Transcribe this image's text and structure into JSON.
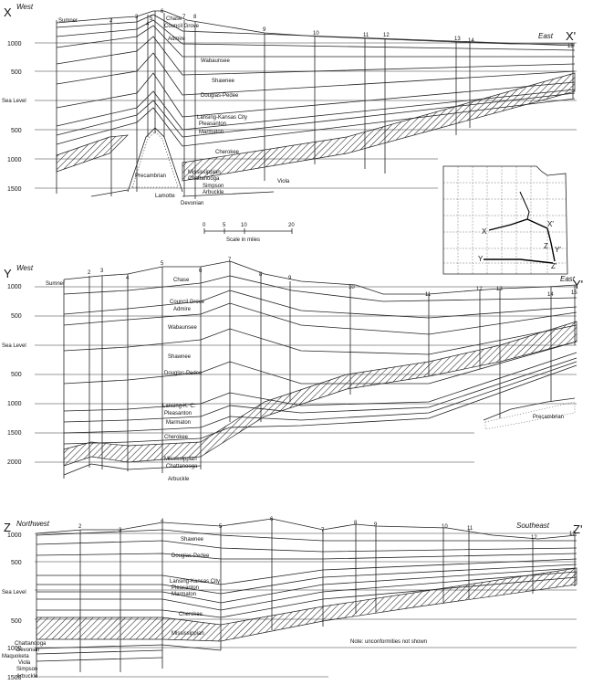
{
  "section_x": {
    "label_left": "X",
    "label_right": "X'",
    "dir_left": "West",
    "dir_right": "East",
    "elevations": [
      "1000",
      "500",
      "Sea Level",
      "500",
      "1000",
      "1500"
    ],
    "wells": [
      "2",
      "3",
      "4",
      "5",
      "6",
      "7",
      "8",
      "9",
      "10",
      "11",
      "12",
      "13",
      "14",
      "15"
    ],
    "units": [
      "Sumner",
      "Chase",
      "Council Grove",
      "Admire",
      "Wabaunsee",
      "Shawnee",
      "Douglas-Pedee",
      "Lansing-Kansas City",
      "Pleasanton",
      "Marmaton",
      "Cherokee",
      "Mississippian",
      "Chattanooga",
      "Simpson",
      "Arbuckle",
      "Devonian",
      "Viola",
      "Precambrian",
      "Lamotte"
    ],
    "scale": {
      "title": "Scale in miles",
      "ticks": [
        "0",
        "5",
        "10",
        "20"
      ]
    }
  },
  "index_map": {
    "labels": [
      "X",
      "X'",
      "Y",
      "Y'",
      "Z",
      "Z'"
    ]
  },
  "section_y": {
    "label_left": "Y",
    "label_right": "Y'",
    "dir_left": "West",
    "dir_right": "East",
    "elevations": [
      "1000",
      "500",
      "Sea Level",
      "500",
      "1000",
      "1500",
      "2000"
    ],
    "wells": [
      "2",
      "3",
      "4",
      "5",
      "6",
      "7",
      "8",
      "9",
      "10",
      "11",
      "12",
      "13",
      "14",
      "15"
    ],
    "units": [
      "Sumner",
      "Chase",
      "Council Grove",
      "Admire",
      "Wabaunsee",
      "Shawnee",
      "Douglas-Pedee",
      "Lansing-K. C.",
      "Pleasanton",
      "Marmaton",
      "Cherokee",
      "Mississippian",
      "Chattanooga",
      "Arbuckle",
      "Precambrian"
    ]
  },
  "section_z": {
    "label_left": "Z",
    "label_right": "Z'",
    "dir_left": "Northwest",
    "dir_right": "Southeast",
    "elevations": [
      "1000",
      "500",
      "Sea Level",
      "500",
      "1000",
      "1500"
    ],
    "wells": [
      "2",
      "3",
      "4",
      "5",
      "6",
      "7",
      "8",
      "9",
      "10",
      "11",
      "12",
      "13"
    ],
    "units": [
      "Shawnee",
      "Douglas-Pedee",
      "Lansing-Kansas City",
      "Pleasanton",
      "Marmaton",
      "Cherokee",
      "Mississippian",
      "Chattanooga",
      "Devonian",
      "Maquoketa",
      "Viola",
      "Simpson",
      "Arbuckle"
    ],
    "note": "Note: unconformities not shown"
  }
}
